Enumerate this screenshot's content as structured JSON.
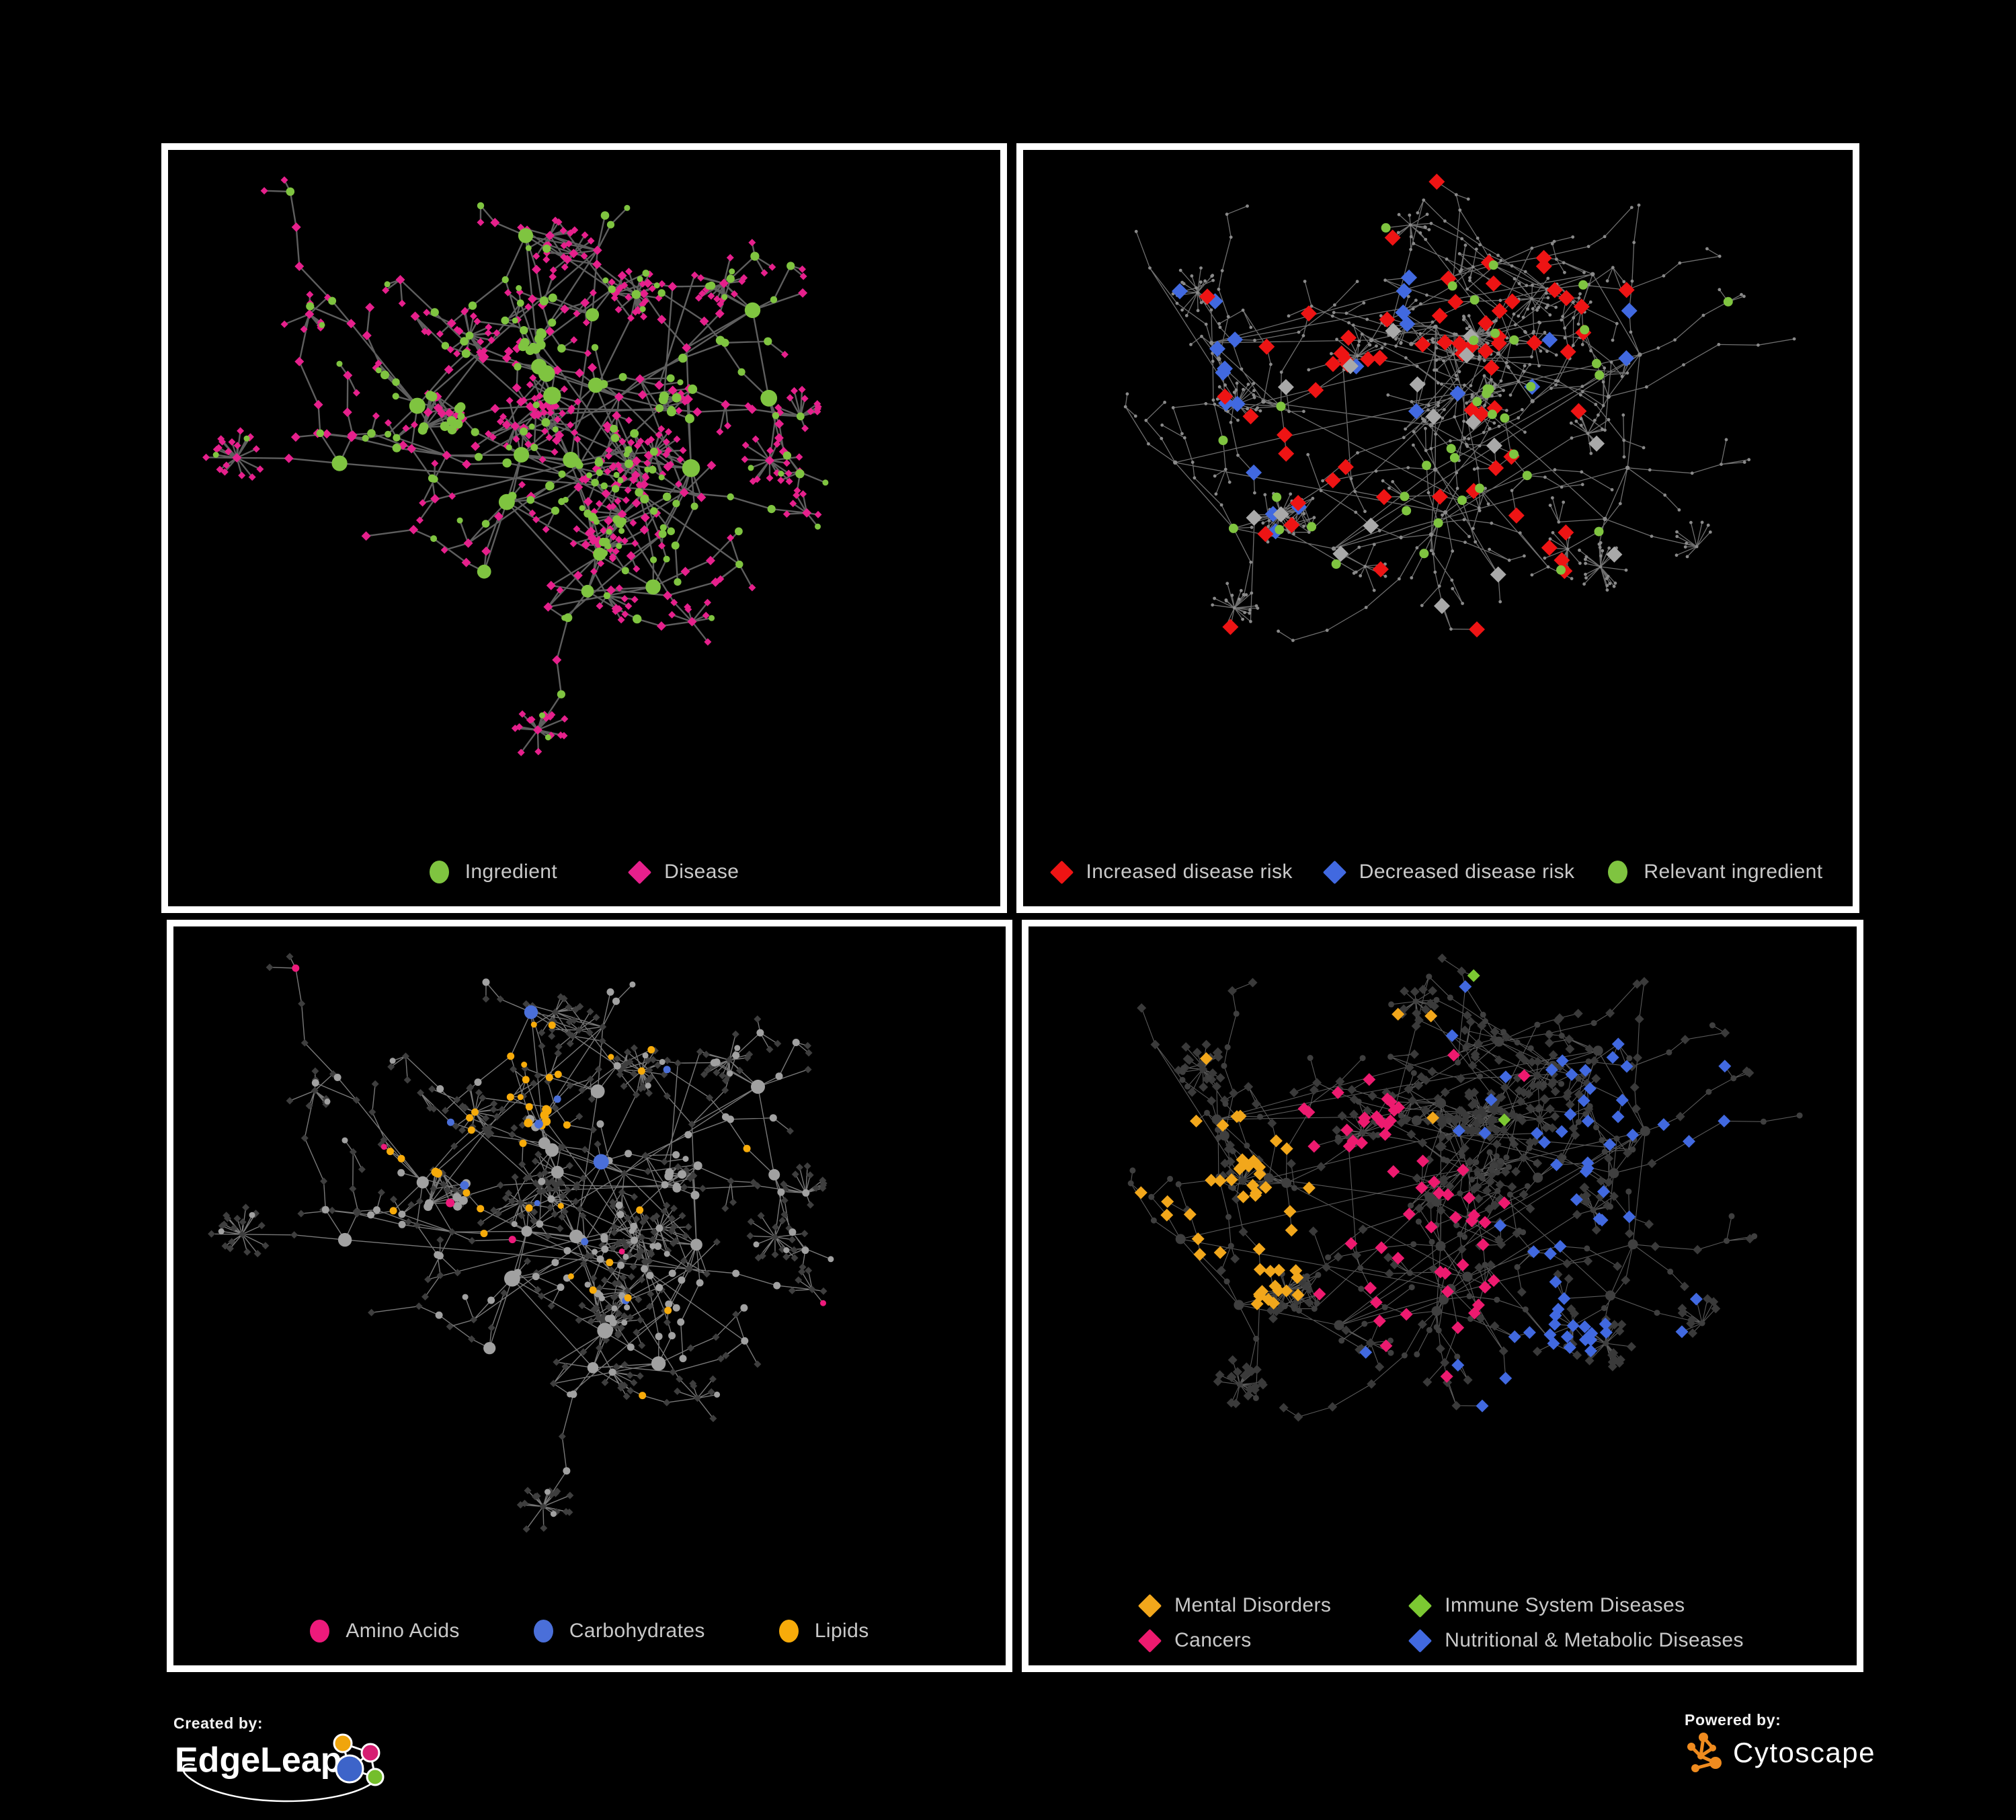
{
  "figure": {
    "background": "#000000",
    "panel_border": "#ffffff",
    "legend_text_color": "#c9c9c9"
  },
  "branding": {
    "created_by": {
      "label": "Created by:",
      "name": "EdgeLeap"
    },
    "powered_by": {
      "label": "Powered by:",
      "name": "Cytoscape"
    }
  },
  "panels": [
    {
      "id": "ingredient-disease",
      "description": "Ingredient-disease association network",
      "legend": [
        {
          "label": "Ingredient",
          "shape": "circle",
          "color": "#7fc440"
        },
        {
          "label": "Disease",
          "shape": "diamond",
          "color": "#e6208c"
        }
      ]
    },
    {
      "id": "disease-risk",
      "description": "Disease risk direction network",
      "legend": [
        {
          "label": "Increased disease risk",
          "shape": "diamond",
          "color": "#ee1414"
        },
        {
          "label": "Decreased disease risk",
          "shape": "diamond",
          "color": "#4169e0"
        },
        {
          "label": "Relevant ingredient",
          "shape": "circle",
          "color": "#7fc440"
        }
      ]
    },
    {
      "id": "ingredient-classes",
      "description": "Ingredient class network",
      "legend": [
        {
          "label": "Amino Acids",
          "shape": "circle",
          "color": "#ed1a7b"
        },
        {
          "label": "Carbohydrates",
          "shape": "circle",
          "color": "#4a6fd9"
        },
        {
          "label": "Lipids",
          "shape": "circle",
          "color": "#f7ab0a"
        }
      ]
    },
    {
      "id": "disease-categories",
      "description": "Disease category network",
      "legend_columns": 2,
      "legend": [
        {
          "label": "Mental Disorders",
          "shape": "diamond",
          "color": "#f2a71b"
        },
        {
          "label": "Immune System Diseases",
          "shape": "diamond",
          "color": "#7cc832"
        },
        {
          "label": "Cancers",
          "shape": "diamond",
          "color": "#ed1a6f"
        },
        {
          "label": "Nutritional & Metabolic Diseases",
          "shape": "diamond",
          "color": "#4169e0"
        }
      ]
    }
  ],
  "network_style": {
    "ingredient-disease": {
      "edge_color": "#6e6e6e",
      "edge_width": 2.4,
      "edge_opacity": 0.85,
      "ingredient_color": "#7fc440",
      "disease_color": "#e6208c"
    },
    "disease-risk": {
      "edge_color": "#7a7a7a",
      "edge_width": 1.3,
      "edge_opacity": 0.9,
      "base_node_color": "#8a8a8a",
      "increased_color": "#ee1414",
      "decreased_color": "#4169e0",
      "neutral_color": "#a9a9a9",
      "ingredient_color": "#7fc440"
    },
    "ingredient-classes": {
      "edge_color": "#a0a0a0",
      "edge_width": 1.4,
      "edge_opacity": 0.75,
      "base_circle_color": "#a1a1a1",
      "disease_color": "#3e3e3e",
      "amino_color": "#ed1a7b",
      "carb_color": "#4a6fd9",
      "lipid_color": "#f7ab0a"
    },
    "disease-categories": {
      "edge_color": "#949494",
      "edge_width": 1.1,
      "edge_opacity": 0.6,
      "base_diamond_color": "#3a3a3a",
      "base_circle_color": "#3f3f3f",
      "mental_color": "#f2a71b",
      "immune_color": "#7cc832",
      "cancer_color": "#ed1a6f",
      "nutritional_color": "#4169e0"
    }
  },
  "edgeleap_logo_colors": {
    "yellow": "#f0a50c",
    "magenta": "#d61f72",
    "blue": "#3d64c9",
    "green": "#74be2b"
  },
  "cytoscape_logo_color": "#ef8b1f"
}
